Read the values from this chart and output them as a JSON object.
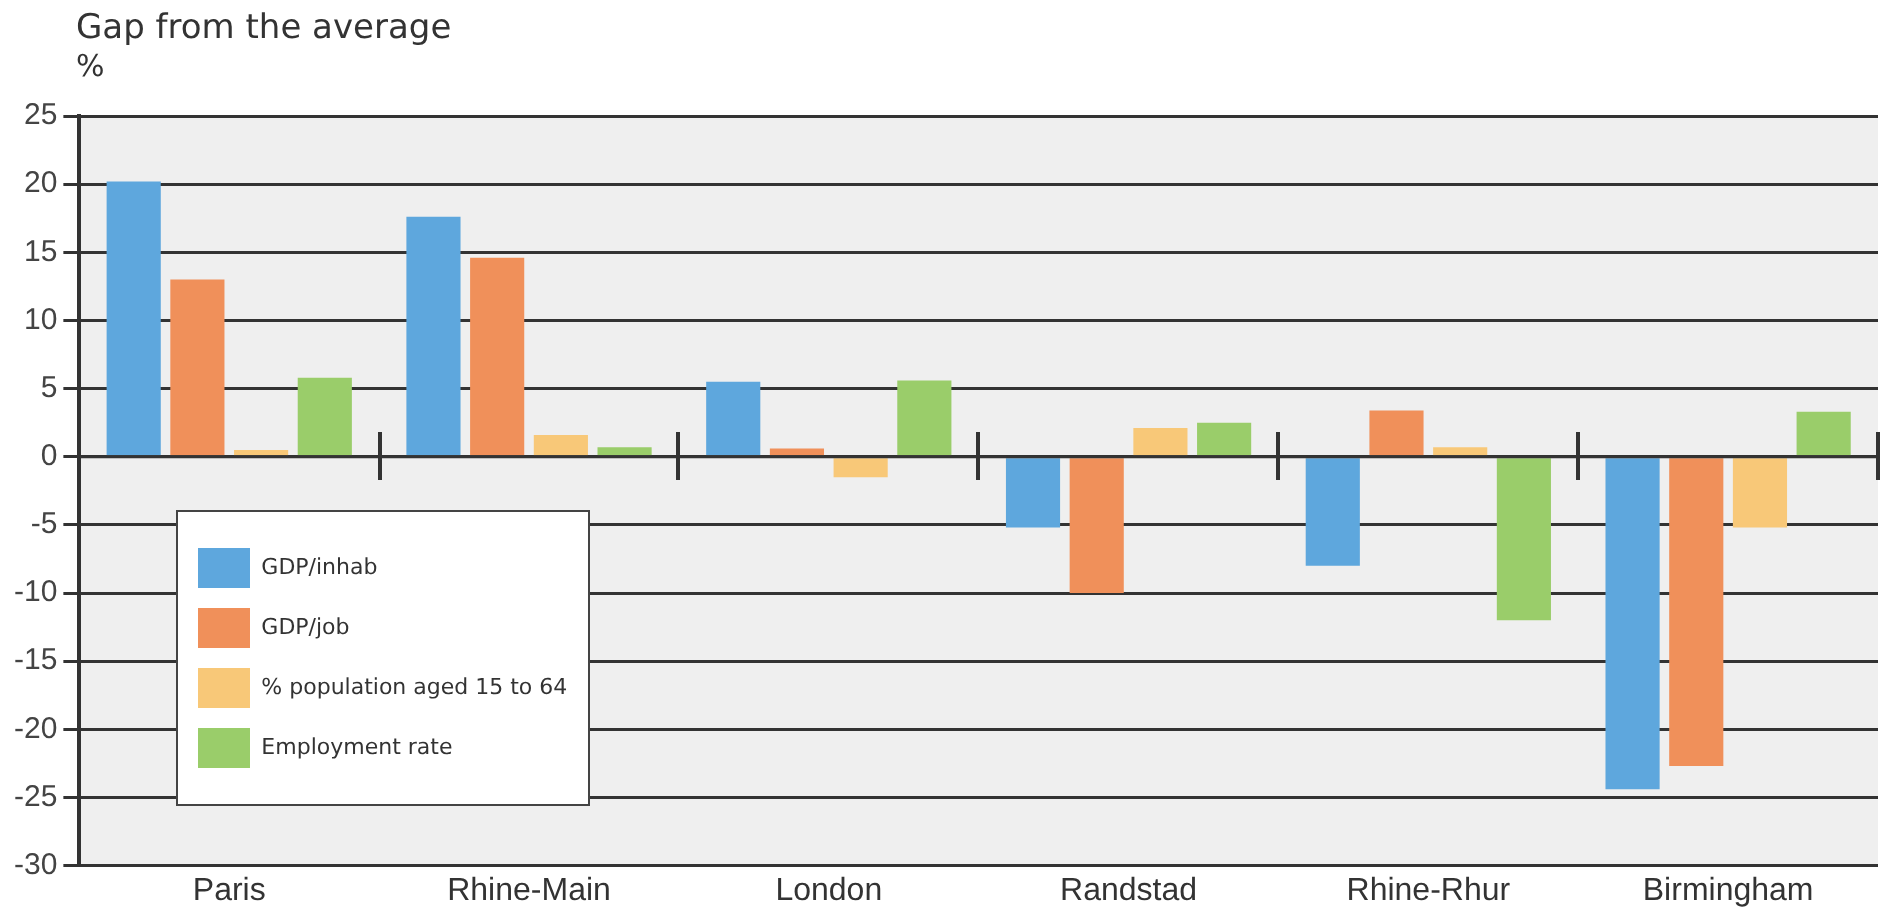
{
  "chart_data": {
    "type": "bar",
    "title": "Gap from the average",
    "ylabel": "%",
    "categories": [
      "Paris",
      "Rhine-Main",
      "London",
      "Randstad",
      "Rhine-Rhur",
      "Birmingham"
    ],
    "series": [
      {
        "name": "GDP/inhab",
        "color": "#5ea7dd",
        "values": [
          20.2,
          17.6,
          5.5,
          -5.2,
          -8,
          -24.4
        ]
      },
      {
        "name": "GDP/job",
        "color": "#f0905a",
        "values": [
          13,
          14.6,
          0.6,
          -10,
          3.4,
          -22.7
        ]
      },
      {
        "name": "% population aged 15 to 64",
        "color": "#f8c878",
        "values": [
          0.5,
          1.6,
          -1.5,
          2.1,
          0.7,
          -5.2
        ]
      },
      {
        "name": "Employment rate",
        "color": "#9acd6a",
        "values": [
          5.8,
          0.7,
          5.6,
          2.5,
          -12,
          3.3
        ]
      }
    ],
    "ylim": [
      -30,
      25
    ],
    "yticks": [
      -30,
      -25,
      -20,
      -15,
      -10,
      -5,
      0,
      5,
      10,
      15,
      20,
      25
    ],
    "grid": "y",
    "legend": "bottom left"
  }
}
